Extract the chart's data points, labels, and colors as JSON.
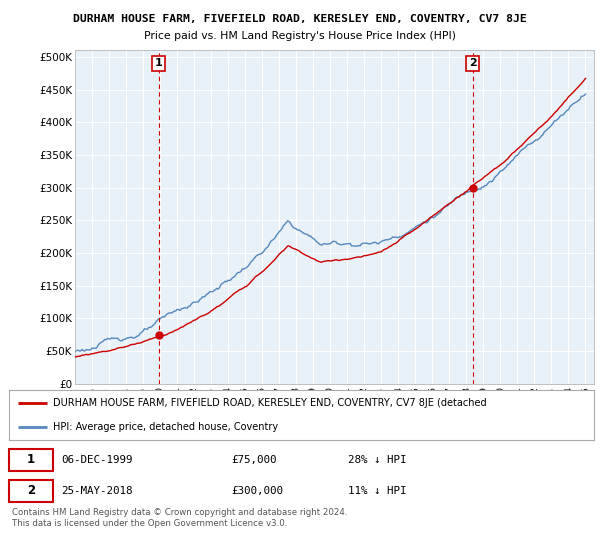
{
  "title": "DURHAM HOUSE FARM, FIVEFIELD ROAD, KERESLEY END, COVENTRY, CV7 8JE",
  "subtitle": "Price paid vs. HM Land Registry's House Price Index (HPI)",
  "ylim": [
    0,
    510000
  ],
  "yticks": [
    0,
    50000,
    100000,
    150000,
    200000,
    250000,
    300000,
    350000,
    400000,
    450000,
    500000
  ],
  "ytick_labels": [
    "£0",
    "£50K",
    "£100K",
    "£150K",
    "£200K",
    "£250K",
    "£300K",
    "£350K",
    "£400K",
    "£450K",
    "£500K"
  ],
  "sale1_date_num": 1999.92,
  "sale1_price": 75000,
  "sale2_date_num": 2018.38,
  "sale2_price": 300000,
  "sale1_info": "06-DEC-1999",
  "sale1_amount": "£75,000",
  "sale1_hpi": "28% ↓ HPI",
  "sale2_info": "25-MAY-2018",
  "sale2_amount": "£300,000",
  "sale2_hpi": "11% ↓ HPI",
  "legend_red": "DURHAM HOUSE FARM, FIVEFIELD ROAD, KERESLEY END, COVENTRY, CV7 8JE (detached",
  "legend_blue": "HPI: Average price, detached house, Coventry",
  "footnote": "Contains HM Land Registry data © Crown copyright and database right 2024.\nThis data is licensed under the Open Government Licence v3.0.",
  "bg_color": "#ffffff",
  "plot_bg_color": "#e8f0f8",
  "grid_color": "#ffffff",
  "red_color": "#cc0000",
  "blue_color": "#5588bb"
}
